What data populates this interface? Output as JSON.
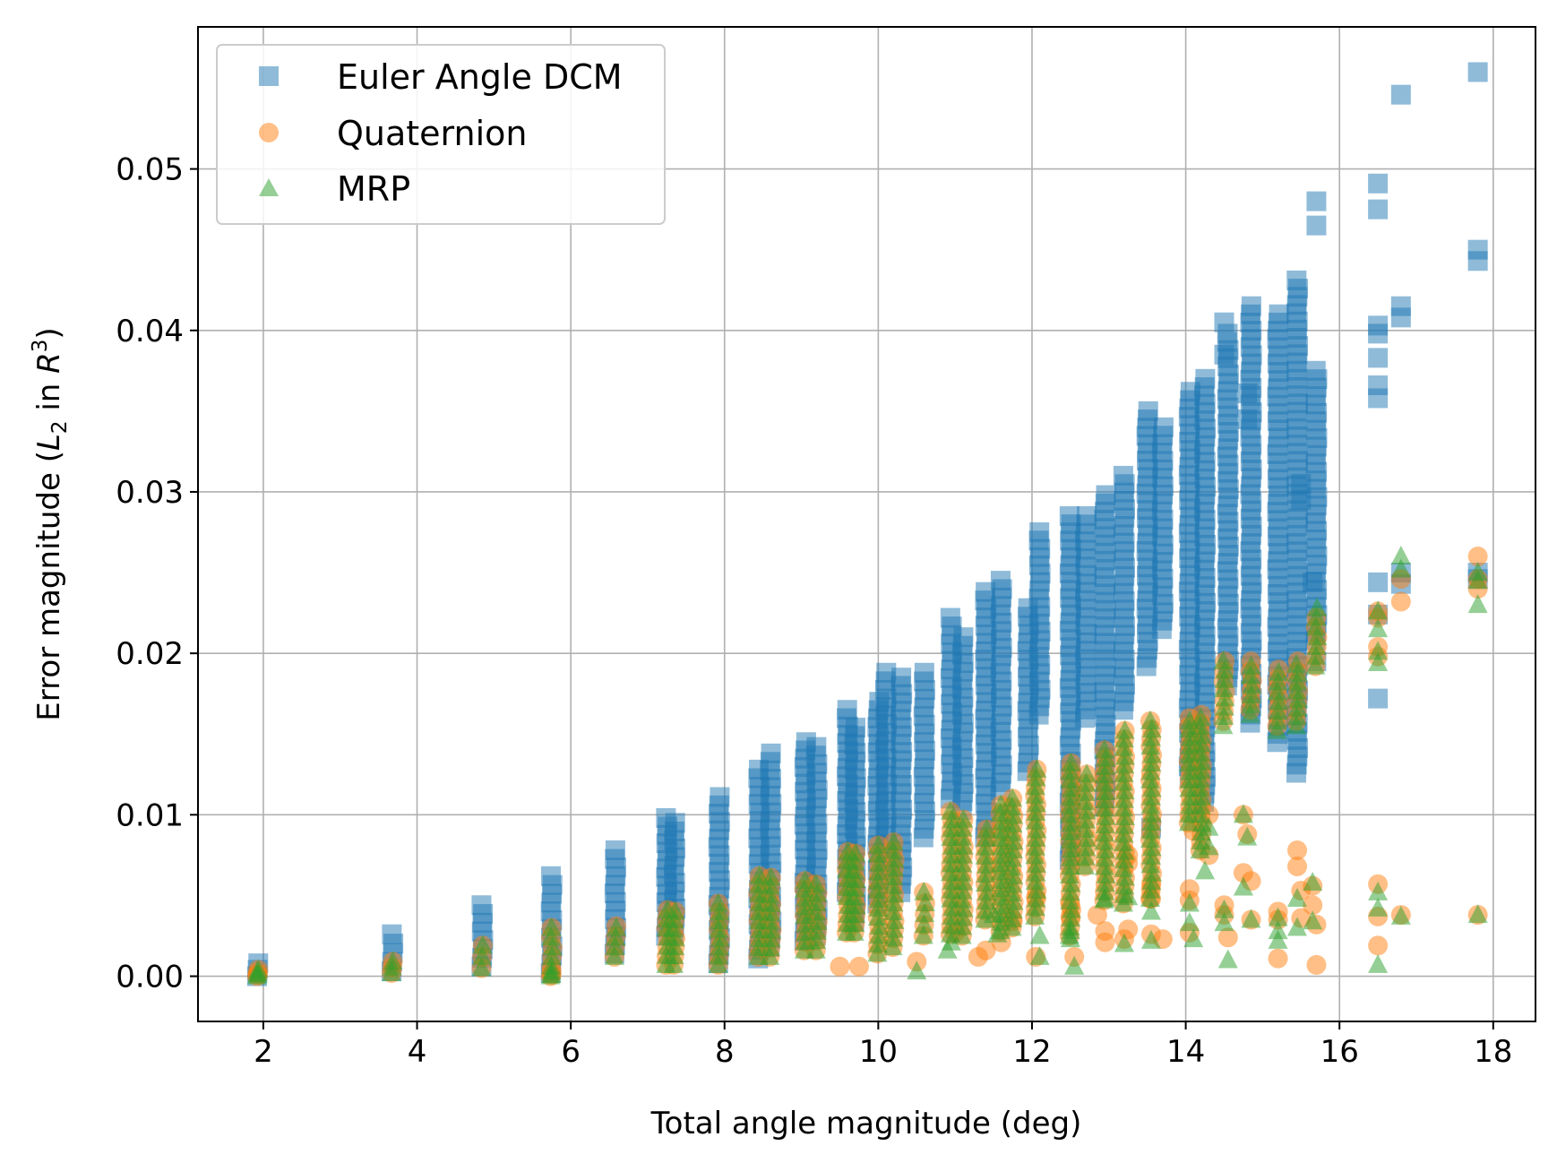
{
  "chart_data": {
    "type": "scatter",
    "xlabel": "Total angle magnitude (deg)",
    "ylabel_prefix": "Error magnitude (",
    "ylabel_L": "L",
    "ylabel_sub": "2",
    "ylabel_in": " in ",
    "ylabel_R": "R",
    "ylabel_sup": "3",
    "ylabel_suffix": ")",
    "xlim": [
      1.15,
      18.55
    ],
    "ylim": [
      -0.0028,
      0.0588
    ],
    "xticks": [
      2,
      4,
      6,
      8,
      10,
      12,
      14,
      16,
      18
    ],
    "yticks": [
      0.0,
      0.01,
      0.02,
      0.03,
      0.04,
      0.05
    ],
    "xtick_labels": [
      "2",
      "4",
      "6",
      "8",
      "10",
      "12",
      "14",
      "16",
      "18"
    ],
    "ytick_labels": [
      "0.00",
      "0.01",
      "0.02",
      "0.03",
      "0.04",
      "0.05"
    ],
    "grid": true,
    "legend_position": "top-left",
    "series": [
      {
        "name": "Euler Angle DCM",
        "marker": "square",
        "color": "#1f77b4",
        "bands": [
          [
            1.93,
            0.0,
            0.0008
          ],
          [
            3.68,
            0.0003,
            0.0026
          ],
          [
            4.85,
            0.0006,
            0.0044
          ],
          [
            5.75,
            0.0002,
            0.0062
          ],
          [
            6.58,
            0.0014,
            0.0078
          ],
          [
            7.25,
            0.0025,
            0.0098
          ],
          [
            7.35,
            0.0026,
            0.0095
          ],
          [
            7.93,
            0.0008,
            0.0111
          ],
          [
            8.45,
            0.0011,
            0.0128
          ],
          [
            8.6,
            0.0018,
            0.0138
          ],
          [
            9.05,
            0.0022,
            0.0145
          ],
          [
            9.2,
            0.0025,
            0.0142
          ],
          [
            9.6,
            0.0052,
            0.0165
          ],
          [
            9.7,
            0.0034,
            0.0154
          ],
          [
            10.0,
            0.0045,
            0.017
          ],
          [
            10.1,
            0.0066,
            0.0188
          ],
          [
            10.3,
            0.0052,
            0.0185
          ],
          [
            10.6,
            0.0086,
            0.0188
          ],
          [
            10.95,
            0.011,
            0.0222
          ],
          [
            11.1,
            0.0103,
            0.021
          ],
          [
            11.4,
            0.0086,
            0.0238
          ],
          [
            11.6,
            0.0115,
            0.0245
          ],
          [
            11.95,
            0.0127,
            0.0228
          ],
          [
            12.1,
            0.0162,
            0.0275
          ],
          [
            12.5,
            0.0072,
            0.0285
          ],
          [
            12.7,
            0.016,
            0.0285
          ],
          [
            12.95,
            0.0105,
            0.0298
          ],
          [
            13.2,
            0.0165,
            0.031
          ],
          [
            13.5,
            0.0192,
            0.035
          ],
          [
            13.7,
            0.0215,
            0.034
          ],
          [
            14.05,
            0.013,
            0.0362
          ],
          [
            14.25,
            0.0108,
            0.037
          ],
          [
            14.55,
            0.018,
            0.0398
          ],
          [
            14.85,
            0.0157,
            0.0415
          ],
          [
            15.2,
            0.0145,
            0.041
          ],
          [
            15.45,
            0.0126,
            0.0431
          ],
          [
            15.7,
            0.0208,
            0.0375
          ]
        ],
        "points": [
          [
            13.55,
            0.0092
          ],
          [
            14.05,
            0.0123
          ],
          [
            14.5,
            0.0405
          ],
          [
            14.5,
            0.0385
          ],
          [
            14.8,
            0.0361
          ],
          [
            14.8,
            0.0345
          ],
          [
            15.5,
            0.0305
          ],
          [
            15.5,
            0.0295
          ],
          [
            15.7,
            0.048
          ],
          [
            15.7,
            0.0465
          ],
          [
            15.7,
            0.0195
          ],
          [
            15.65,
            0.0244
          ],
          [
            16.5,
            0.0491
          ],
          [
            16.5,
            0.0475
          ],
          [
            16.5,
            0.0403
          ],
          [
            16.5,
            0.0398
          ],
          [
            16.5,
            0.0383
          ],
          [
            16.5,
            0.0366
          ],
          [
            16.5,
            0.0358
          ],
          [
            16.5,
            0.0244
          ],
          [
            16.5,
            0.0224
          ],
          [
            16.5,
            0.0172
          ],
          [
            16.8,
            0.0546
          ],
          [
            16.8,
            0.0415
          ],
          [
            16.8,
            0.0408
          ],
          [
            16.8,
            0.025
          ],
          [
            16.8,
            0.0243
          ],
          [
            17.8,
            0.056
          ],
          [
            17.8,
            0.045
          ],
          [
            17.8,
            0.0443
          ],
          [
            17.8,
            0.025
          ],
          [
            17.8,
            0.0246
          ]
        ]
      },
      {
        "name": "Quaternion",
        "marker": "circle",
        "color": "#ff7f0e",
        "bands": [
          [
            1.93,
            0.0,
            0.0004
          ],
          [
            3.68,
            0.0002,
            0.0009
          ],
          [
            4.85,
            0.0005,
            0.0019
          ],
          [
            5.75,
            0.0,
            0.003
          ],
          [
            6.58,
            0.0012,
            0.0031
          ],
          [
            7.25,
            0.0007,
            0.0041
          ],
          [
            7.35,
            0.0007,
            0.004
          ],
          [
            7.93,
            0.0007,
            0.0045
          ],
          [
            8.45,
            0.0012,
            0.0062
          ],
          [
            8.6,
            0.0012,
            0.0061
          ],
          [
            9.05,
            0.0016,
            0.0059
          ],
          [
            9.2,
            0.0016,
            0.0057
          ],
          [
            9.6,
            0.0027,
            0.0077
          ],
          [
            9.7,
            0.0027,
            0.0076
          ],
          [
            10.0,
            0.0014,
            0.0081
          ],
          [
            10.2,
            0.0018,
            0.0083
          ],
          [
            10.6,
            0.0025,
            0.0052
          ],
          [
            10.95,
            0.0026,
            0.0102
          ],
          [
            11.1,
            0.0025,
            0.0097
          ],
          [
            11.4,
            0.0035,
            0.0091
          ],
          [
            11.6,
            0.0028,
            0.0106
          ],
          [
            11.75,
            0.003,
            0.011
          ],
          [
            12.05,
            0.0037,
            0.0128
          ],
          [
            12.5,
            0.0025,
            0.0132
          ],
          [
            12.7,
            0.0068,
            0.0125
          ],
          [
            12.95,
            0.0047,
            0.014
          ],
          [
            13.2,
            0.0045,
            0.0152
          ],
          [
            13.55,
            0.0048,
            0.0158
          ],
          [
            14.05,
            0.0095,
            0.016
          ],
          [
            14.2,
            0.0078,
            0.0162
          ],
          [
            14.5,
            0.0158,
            0.0195
          ],
          [
            14.85,
            0.0165,
            0.0195
          ],
          [
            15.2,
            0.0155,
            0.019
          ],
          [
            15.45,
            0.0158,
            0.0195
          ],
          [
            15.7,
            0.0192,
            0.0222
          ]
        ],
        "points": [
          [
            1.93,
            0.0001
          ],
          [
            5.75,
            0.0001
          ],
          [
            5.75,
            0.0003
          ],
          [
            9.5,
            0.0006
          ],
          [
            9.75,
            0.0006
          ],
          [
            10.5,
            0.0009
          ],
          [
            11.0,
            0.0027
          ],
          [
            11.3,
            0.0012
          ],
          [
            11.4,
            0.0016
          ],
          [
            11.6,
            0.0021
          ],
          [
            11.75,
            0.0034
          ],
          [
            12.05,
            0.0049
          ],
          [
            12.05,
            0.0012
          ],
          [
            12.5,
            0.0044
          ],
          [
            12.5,
            0.0037
          ],
          [
            12.55,
            0.0012
          ],
          [
            12.85,
            0.0038
          ],
          [
            12.95,
            0.0028
          ],
          [
            12.95,
            0.0021
          ],
          [
            13.2,
            0.0023
          ],
          [
            13.25,
            0.0029
          ],
          [
            13.25,
            0.007
          ],
          [
            13.25,
            0.0075
          ],
          [
            13.55,
            0.0026
          ],
          [
            13.55,
            0.0056
          ],
          [
            13.55,
            0.0048
          ],
          [
            13.7,
            0.0023
          ],
          [
            14.05,
            0.0054
          ],
          [
            14.05,
            0.0047
          ],
          [
            14.05,
            0.0027
          ],
          [
            14.1,
            0.009
          ],
          [
            14.3,
            0.01
          ],
          [
            14.3,
            0.0075
          ],
          [
            14.5,
            0.0044
          ],
          [
            14.5,
            0.0038
          ],
          [
            14.55,
            0.0024
          ],
          [
            14.75,
            0.01
          ],
          [
            14.75,
            0.0064
          ],
          [
            14.8,
            0.0088
          ],
          [
            14.85,
            0.0059
          ],
          [
            14.85,
            0.0035
          ],
          [
            15.2,
            0.004
          ],
          [
            15.2,
            0.0035
          ],
          [
            15.2,
            0.0011
          ],
          [
            15.45,
            0.0078
          ],
          [
            15.45,
            0.0068
          ],
          [
            15.5,
            0.0053
          ],
          [
            15.5,
            0.0036
          ],
          [
            15.65,
            0.0056
          ],
          [
            15.65,
            0.0044
          ],
          [
            15.7,
            0.0032
          ],
          [
            15.7,
            0.0007
          ],
          [
            16.5,
            0.0226
          ],
          [
            16.5,
            0.0222
          ],
          [
            16.5,
            0.0204
          ],
          [
            16.5,
            0.0198
          ],
          [
            16.5,
            0.0057
          ],
          [
            16.5,
            0.0037
          ],
          [
            16.5,
            0.0019
          ],
          [
            16.8,
            0.0246
          ],
          [
            16.8,
            0.0232
          ],
          [
            16.8,
            0.0038
          ],
          [
            17.8,
            0.026
          ],
          [
            17.8,
            0.0246
          ],
          [
            17.8,
            0.024
          ],
          [
            17.8,
            0.0038
          ]
        ]
      },
      {
        "name": "MRP",
        "marker": "triangle",
        "color": "#2ca02c",
        "bands": [
          [
            1.93,
            0.0,
            0.0004
          ],
          [
            3.68,
            0.0002,
            0.0009
          ],
          [
            4.85,
            0.0005,
            0.0019
          ],
          [
            5.75,
            0.0,
            0.003
          ],
          [
            6.58,
            0.0012,
            0.003
          ],
          [
            7.25,
            0.0007,
            0.0041
          ],
          [
            7.35,
            0.0007,
            0.004
          ],
          [
            7.93,
            0.0007,
            0.0045
          ],
          [
            8.45,
            0.0012,
            0.0062
          ],
          [
            8.6,
            0.0012,
            0.0061
          ],
          [
            9.05,
            0.0016,
            0.0059
          ],
          [
            9.2,
            0.0016,
            0.0057
          ],
          [
            9.6,
            0.0027,
            0.0077
          ],
          [
            9.7,
            0.0027,
            0.0076
          ],
          [
            10.0,
            0.0014,
            0.0081
          ],
          [
            10.2,
            0.0018,
            0.0083
          ],
          [
            10.6,
            0.0025,
            0.0052
          ],
          [
            10.95,
            0.0026,
            0.0102
          ],
          [
            11.1,
            0.0025,
            0.0097
          ],
          [
            11.4,
            0.0035,
            0.0091
          ],
          [
            11.6,
            0.0028,
            0.0106
          ],
          [
            11.75,
            0.003,
            0.011
          ],
          [
            12.05,
            0.0037,
            0.0128
          ],
          [
            12.5,
            0.0025,
            0.0132
          ],
          [
            12.7,
            0.0068,
            0.0125
          ],
          [
            12.95,
            0.0047,
            0.014
          ],
          [
            13.2,
            0.0045,
            0.0152
          ],
          [
            13.55,
            0.0048,
            0.0158
          ],
          [
            14.05,
            0.0095,
            0.0158
          ],
          [
            14.2,
            0.0078,
            0.016
          ],
          [
            14.5,
            0.0155,
            0.0195
          ],
          [
            14.85,
            0.0162,
            0.0192
          ],
          [
            15.2,
            0.0152,
            0.0188
          ],
          [
            15.45,
            0.0155,
            0.0193
          ],
          [
            15.7,
            0.0192,
            0.0228
          ]
        ],
        "points": [
          [
            1.93,
            0.0001
          ],
          [
            5.75,
            0.0001
          ],
          [
            5.75,
            0.0003
          ],
          [
            10.5,
            0.0003
          ],
          [
            10.9,
            0.0016
          ],
          [
            10.95,
            0.0021
          ],
          [
            11.5,
            0.0038
          ],
          [
            11.55,
            0.0026
          ],
          [
            12.1,
            0.0025
          ],
          [
            12.1,
            0.0012
          ],
          [
            12.5,
            0.0028
          ],
          [
            12.5,
            0.0023
          ],
          [
            12.55,
            0.0006
          ],
          [
            12.95,
            0.0048
          ],
          [
            13.2,
            0.002
          ],
          [
            13.25,
            0.0049
          ],
          [
            13.55,
            0.004
          ],
          [
            13.55,
            0.0022
          ],
          [
            14.05,
            0.0045
          ],
          [
            14.05,
            0.0033
          ],
          [
            14.1,
            0.0023
          ],
          [
            14.25,
            0.0065
          ],
          [
            14.3,
            0.008
          ],
          [
            14.3,
            0.0092
          ],
          [
            14.5,
            0.0041
          ],
          [
            14.5,
            0.0033
          ],
          [
            14.55,
            0.001
          ],
          [
            14.75,
            0.01
          ],
          [
            14.75,
            0.0055
          ],
          [
            14.8,
            0.0086
          ],
          [
            14.85,
            0.0035
          ],
          [
            15.2,
            0.0036
          ],
          [
            15.2,
            0.0028
          ],
          [
            15.2,
            0.0022
          ],
          [
            15.45,
            0.0048
          ],
          [
            15.45,
            0.003
          ],
          [
            15.65,
            0.0058
          ],
          [
            15.65,
            0.0034
          ],
          [
            16.5,
            0.0226
          ],
          [
            16.5,
            0.0215
          ],
          [
            16.5,
            0.0201
          ],
          [
            16.5,
            0.0194
          ],
          [
            16.5,
            0.0052
          ],
          [
            16.5,
            0.0042
          ],
          [
            16.5,
            0.0007
          ],
          [
            16.8,
            0.026
          ],
          [
            16.8,
            0.0252
          ],
          [
            16.8,
            0.0037
          ],
          [
            17.8,
            0.025
          ],
          [
            17.8,
            0.0245
          ],
          [
            17.8,
            0.023
          ],
          [
            17.8,
            0.0038
          ]
        ]
      }
    ]
  }
}
